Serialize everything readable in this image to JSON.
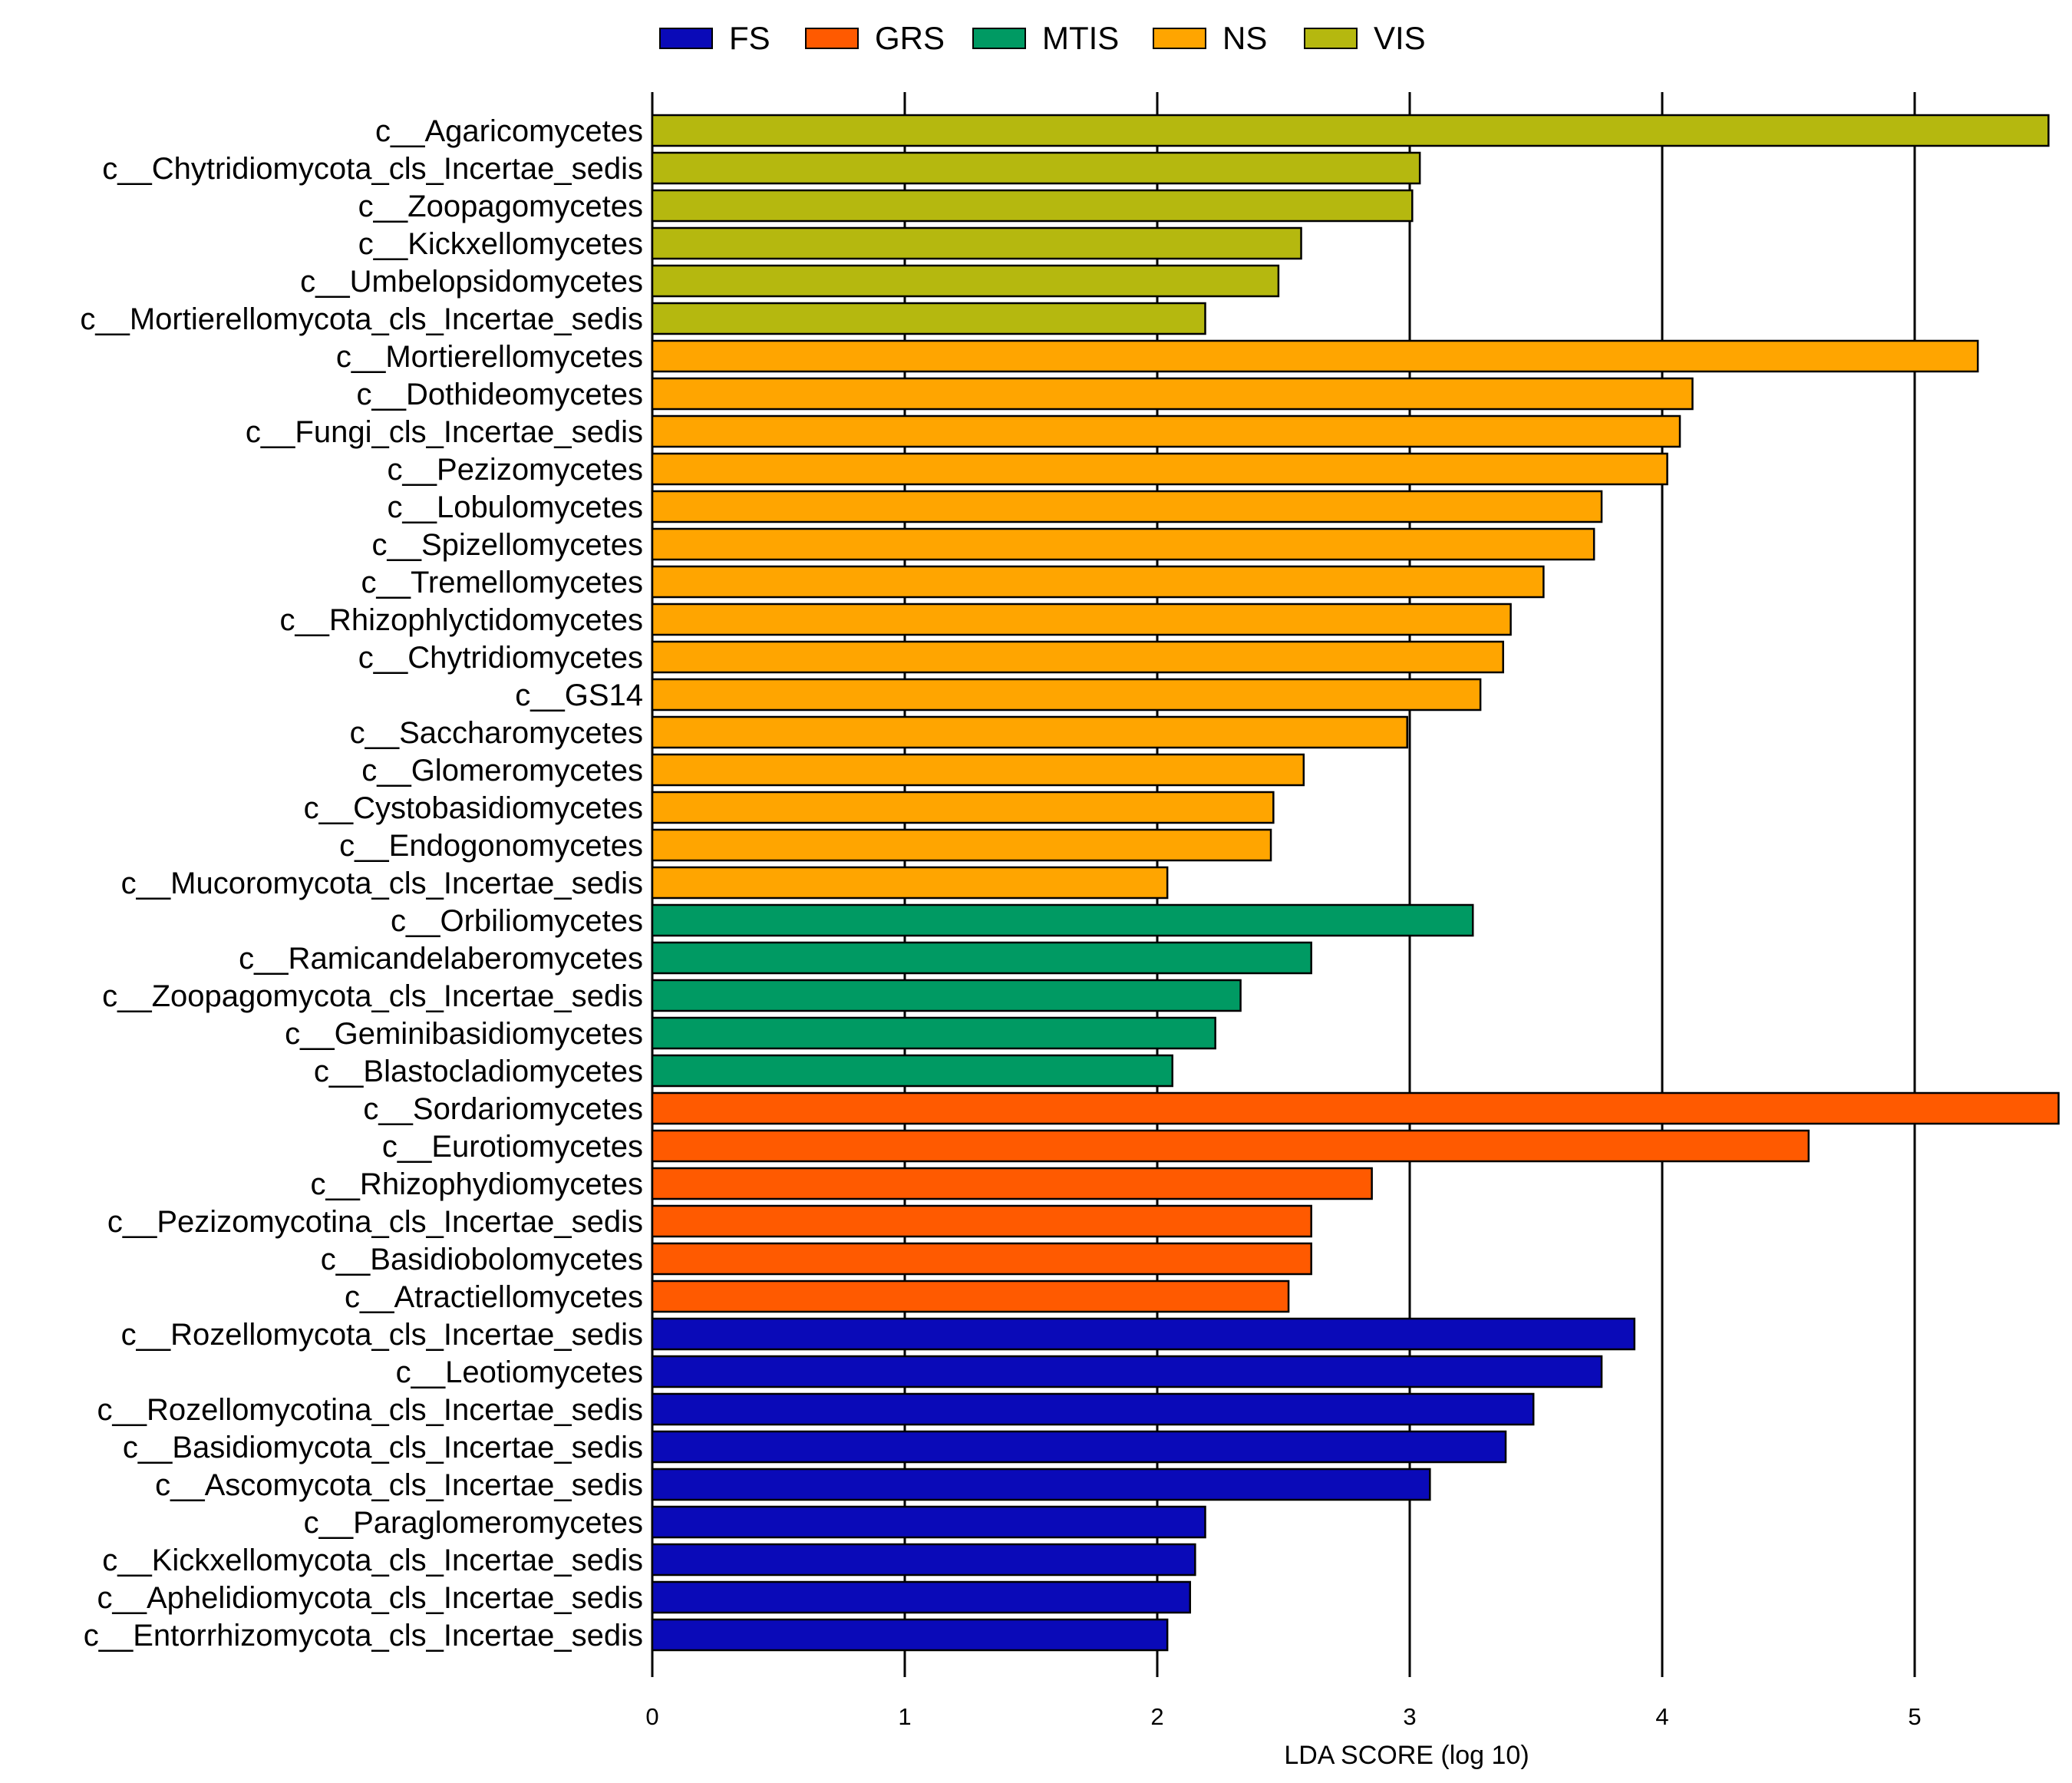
{
  "chart_data": {
    "type": "bar",
    "orientation": "horizontal",
    "xlabel": "LDA SCORE (log 10)",
    "ylabel": "",
    "title": "",
    "xlim": [
      0,
      5.57
    ],
    "xticks": [
      0,
      1,
      2,
      3,
      4,
      5
    ],
    "grid": true,
    "legend_position": "top",
    "legend": [
      {
        "name": "FS",
        "color": "#0a0ab8"
      },
      {
        "name": "GRS",
        "color": "#ff5a00"
      },
      {
        "name": "MTIS",
        "color": "#009a63"
      },
      {
        "name": "NS",
        "color": "#ffa500"
      },
      {
        "name": "VIS",
        "color": "#b5b80f"
      }
    ],
    "bars": [
      {
        "label": "c__Agaricomycetes",
        "value": 5.53,
        "group": "VIS"
      },
      {
        "label": "c__Chytridiomycota_cls_Incertae_sedis",
        "value": 3.04,
        "group": "VIS"
      },
      {
        "label": "c__Zoopagomycetes",
        "value": 3.01,
        "group": "VIS"
      },
      {
        "label": "c__Kickxellomycetes",
        "value": 2.57,
        "group": "VIS"
      },
      {
        "label": "c__Umbelopsidomycetes",
        "value": 2.48,
        "group": "VIS"
      },
      {
        "label": "c__Mortierellomycota_cls_Incertae_sedis",
        "value": 2.19,
        "group": "VIS"
      },
      {
        "label": "c__Mortierellomycetes",
        "value": 5.25,
        "group": "NS"
      },
      {
        "label": "c__Dothideomycetes",
        "value": 4.12,
        "group": "NS"
      },
      {
        "label": "c__Fungi_cls_Incertae_sedis",
        "value": 4.07,
        "group": "NS"
      },
      {
        "label": "c__Pezizomycetes",
        "value": 4.02,
        "group": "NS"
      },
      {
        "label": "c__Lobulomycetes",
        "value": 3.76,
        "group": "NS"
      },
      {
        "label": "c__Spizellomycetes",
        "value": 3.73,
        "group": "NS"
      },
      {
        "label": "c__Tremellomycetes",
        "value": 3.53,
        "group": "NS"
      },
      {
        "label": "c__Rhizophlyctidomycetes",
        "value": 3.4,
        "group": "NS"
      },
      {
        "label": "c__Chytridiomycetes",
        "value": 3.37,
        "group": "NS"
      },
      {
        "label": "c__GS14",
        "value": 3.28,
        "group": "NS"
      },
      {
        "label": "c__Saccharomycetes",
        "value": 2.99,
        "group": "NS"
      },
      {
        "label": "c__Glomeromycetes",
        "value": 2.58,
        "group": "NS"
      },
      {
        "label": "c__Cystobasidiomycetes",
        "value": 2.46,
        "group": "NS"
      },
      {
        "label": "c__Endogonomycetes",
        "value": 2.45,
        "group": "NS"
      },
      {
        "label": "c__Mucoromycota_cls_Incertae_sedis",
        "value": 2.04,
        "group": "NS"
      },
      {
        "label": "c__Orbiliomycetes",
        "value": 3.25,
        "group": "MTIS"
      },
      {
        "label": "c__Ramicandelaberomycetes",
        "value": 2.61,
        "group": "MTIS"
      },
      {
        "label": "c__Zoopagomycota_cls_Incertae_sedis",
        "value": 2.33,
        "group": "MTIS"
      },
      {
        "label": "c__Geminibasidiomycetes",
        "value": 2.23,
        "group": "MTIS"
      },
      {
        "label": "c__Blastocladiomycetes",
        "value": 2.06,
        "group": "MTIS"
      },
      {
        "label": "c__Sordariomycetes",
        "value": 5.57,
        "group": "GRS"
      },
      {
        "label": "c__Eurotiomycetes",
        "value": 4.58,
        "group": "GRS"
      },
      {
        "label": "c__Rhizophydiomycetes",
        "value": 2.85,
        "group": "GRS"
      },
      {
        "label": "c__Pezizomycotina_cls_Incertae_sedis",
        "value": 2.61,
        "group": "GRS"
      },
      {
        "label": "c__Basidiobolomycetes",
        "value": 2.61,
        "group": "GRS"
      },
      {
        "label": "c__Atractiellomycetes",
        "value": 2.52,
        "group": "GRS"
      },
      {
        "label": "c__Rozellomycota_cls_Incertae_sedis",
        "value": 3.89,
        "group": "FS"
      },
      {
        "label": "c__Leotiomycetes",
        "value": 3.76,
        "group": "FS"
      },
      {
        "label": "c__Rozellomycotina_cls_Incertae_sedis",
        "value": 3.49,
        "group": "FS"
      },
      {
        "label": "c__Basidiomycota_cls_Incertae_sedis",
        "value": 3.38,
        "group": "FS"
      },
      {
        "label": "c__Ascomycota_cls_Incertae_sedis",
        "value": 3.08,
        "group": "FS"
      },
      {
        "label": "c__Paraglomeromycetes",
        "value": 2.19,
        "group": "FS"
      },
      {
        "label": "c__Kickxellomycota_cls_Incertae_sedis",
        "value": 2.15,
        "group": "FS"
      },
      {
        "label": "c__Aphelidiomycota_cls_Incertae_sedis",
        "value": 2.13,
        "group": "FS"
      },
      {
        "label": "c__Entorrhizomycota_cls_Incertae_sedis",
        "value": 2.04,
        "group": "FS"
      }
    ]
  }
}
